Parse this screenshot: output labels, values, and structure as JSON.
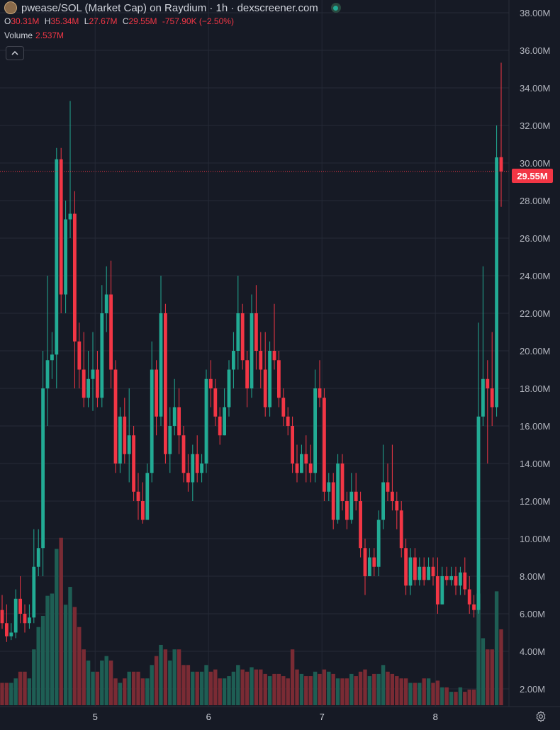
{
  "header": {
    "title": "pwease/SOL (Market Cap) on Raydium · 1h · dexscreener.com",
    "ohlc": {
      "o_label": "O",
      "o": "30.31M",
      "h_label": "H",
      "h": "35.34M",
      "l_label": "L",
      "l": "27.67M",
      "c_label": "C",
      "c": "29.55M",
      "change": "-757.90K (−2.50%)"
    },
    "volume_label": "Volume",
    "volume_value": "2.537M",
    "collapse_icon": "chevron-up-icon"
  },
  "last_price_label": "29.55M",
  "colors": {
    "up": "#22ab94",
    "down": "#f23645",
    "background": "#161a25",
    "grid": "#252a36"
  },
  "chart_data": {
    "type": "candlestick",
    "title": "pwease/SOL (Market Cap) on Raydium · 1h · dexscreener.com",
    "unit": "M",
    "x_tick_labels": [
      "5",
      "6",
      "7",
      "8"
    ],
    "y_tick_labels": [
      "2.00M",
      "4.00M",
      "6.00M",
      "8.00M",
      "10.00M",
      "12.00M",
      "14.00M",
      "16.00M",
      "18.00M",
      "20.00M",
      "22.00M",
      "24.00M",
      "26.00M",
      "28.00M",
      "30.00M",
      "32.00M",
      "34.00M",
      "36.00M",
      "38.00M"
    ],
    "ylim": [
      1.0,
      39.0
    ],
    "last_price": 29.55,
    "candles": [
      [
        0,
        6.2,
        5.5,
        7.0,
        5.2
      ],
      [
        1,
        5.5,
        4.8,
        6.5,
        4.5
      ],
      [
        2,
        4.8,
        5.0,
        5.5,
        4.6
      ],
      [
        3,
        5.0,
        6.8,
        7.3,
        4.7
      ],
      [
        4,
        6.8,
        6.0,
        8.0,
        5.5
      ],
      [
        5,
        6.0,
        5.5,
        6.5,
        5.0
      ],
      [
        6,
        5.5,
        5.8,
        6.5,
        5.2
      ],
      [
        7,
        5.8,
        8.5,
        10.5,
        5.5
      ],
      [
        8,
        8.5,
        9.5,
        10.5,
        8.0
      ],
      [
        9,
        9.5,
        18.0,
        20.0,
        8.0
      ],
      [
        10,
        18.0,
        19.5,
        24.0,
        16.0
      ],
      [
        11,
        19.5,
        19.8,
        21.0,
        18.5
      ],
      [
        12,
        19.8,
        30.2,
        30.8,
        18.0
      ],
      [
        13,
        30.2,
        23.0,
        30.8,
        22.0
      ],
      [
        14,
        23.0,
        27.0,
        28.0,
        22.0
      ],
      [
        15,
        27.0,
        27.3,
        33.3,
        26.0
      ],
      [
        16,
        27.3,
        20.5,
        28.5,
        18.0
      ],
      [
        17,
        20.5,
        19.0,
        21.5,
        18.0
      ],
      [
        18,
        19.0,
        17.5,
        21.0,
        17.0
      ],
      [
        19,
        17.5,
        18.5,
        20.0,
        17.0
      ],
      [
        20,
        18.5,
        19.0,
        21.0,
        16.8
      ],
      [
        21,
        19.0,
        17.5,
        20.0,
        17.0
      ],
      [
        22,
        17.5,
        22.0,
        23.5,
        17.0
      ],
      [
        23,
        22.0,
        23.0,
        24.5,
        21.0
      ],
      [
        24,
        23.0,
        19.0,
        24.8,
        18.0
      ],
      [
        25,
        19.0,
        14.0,
        19.5,
        13.5
      ],
      [
        26,
        14.0,
        16.5,
        17.0,
        13.5
      ],
      [
        27,
        16.5,
        14.5,
        17.5,
        14.0
      ],
      [
        28,
        14.5,
        15.5,
        18.0,
        13.0
      ],
      [
        29,
        15.5,
        12.5,
        16.0,
        12.0
      ],
      [
        30,
        12.5,
        12.0,
        13.5,
        11.0
      ],
      [
        31,
        12.0,
        11.0,
        13.0,
        10.8
      ],
      [
        32,
        11.0,
        13.5,
        14.0,
        11.0
      ],
      [
        33,
        13.5,
        19.0,
        20.5,
        13.0
      ],
      [
        34,
        19.0,
        16.5,
        19.5,
        15.5
      ],
      [
        35,
        16.5,
        22.0,
        24.0,
        16.0
      ],
      [
        36,
        22.0,
        14.5,
        22.5,
        14.0
      ],
      [
        37,
        14.5,
        16.0,
        17.0,
        13.5
      ],
      [
        38,
        16.0,
        17.0,
        18.5,
        15.5
      ],
      [
        39,
        17.0,
        15.5,
        18.0,
        14.5
      ],
      [
        40,
        15.5,
        13.5,
        16.0,
        13.0
      ],
      [
        41,
        13.5,
        13.0,
        14.5,
        12.5
      ],
      [
        42,
        13.0,
        14.5,
        15.0,
        12.0
      ],
      [
        43,
        14.5,
        13.5,
        15.5,
        13.0
      ],
      [
        44,
        13.5,
        14.0,
        14.5,
        13.0
      ],
      [
        45,
        14.0,
        18.5,
        19.0,
        13.5
      ],
      [
        46,
        18.5,
        18.0,
        19.5,
        17.0
      ],
      [
        47,
        18.0,
        16.5,
        18.5,
        16.0
      ],
      [
        48,
        16.5,
        15.5,
        17.0,
        15.0
      ],
      [
        49,
        15.5,
        17.0,
        18.0,
        15.5
      ],
      [
        50,
        17.0,
        19.0,
        19.5,
        16.5
      ],
      [
        51,
        19.0,
        20.0,
        21.0,
        18.0
      ],
      [
        52,
        20.0,
        22.0,
        24.0,
        19.0
      ],
      [
        53,
        22.0,
        19.5,
        22.5,
        19.0
      ],
      [
        54,
        19.5,
        18.0,
        20.0,
        17.0
      ],
      [
        55,
        18.0,
        22.0,
        23.0,
        17.5
      ],
      [
        56,
        22.0,
        20.0,
        23.5,
        19.0
      ],
      [
        57,
        20.0,
        19.0,
        21.0,
        18.0
      ],
      [
        58,
        19.0,
        17.0,
        21.0,
        16.5
      ],
      [
        59,
        17.0,
        20.0,
        20.5,
        16.5
      ],
      [
        60,
        20.0,
        19.5,
        22.5,
        19.0
      ],
      [
        61,
        19.5,
        17.5,
        20.0,
        17.0
      ],
      [
        62,
        17.5,
        16.5,
        18.0,
        16.0
      ],
      [
        63,
        16.5,
        16.0,
        17.0,
        15.5
      ],
      [
        64,
        16.0,
        14.0,
        16.5,
        13.5
      ],
      [
        65,
        14.0,
        13.5,
        15.0,
        13.0
      ],
      [
        66,
        13.5,
        14.5,
        15.0,
        13.5
      ],
      [
        67,
        14.5,
        14.0,
        15.5,
        13.0
      ],
      [
        68,
        14.0,
        13.5,
        15.0,
        13.0
      ],
      [
        69,
        13.5,
        18.0,
        19.0,
        13.0
      ],
      [
        70,
        18.0,
        17.5,
        19.5,
        17.0
      ],
      [
        71,
        17.5,
        12.5,
        18.0,
        12.0
      ],
      [
        72,
        12.5,
        13.0,
        13.5,
        12.0
      ],
      [
        73,
        13.0,
        11.0,
        13.5,
        10.5
      ],
      [
        74,
        11.0,
        14.0,
        14.5,
        10.8
      ],
      [
        75,
        14.0,
        12.0,
        14.5,
        11.5
      ],
      [
        76,
        12.0,
        11.0,
        12.5,
        10.5
      ],
      [
        77,
        11.0,
        12.5,
        13.5,
        10.8
      ],
      [
        78,
        12.5,
        12.0,
        13.5,
        11.5
      ],
      [
        79,
        12.0,
        9.5,
        12.5,
        9.0
      ],
      [
        80,
        9.5,
        8.0,
        10.0,
        7.0
      ],
      [
        81,
        8.0,
        9.0,
        9.5,
        8.5
      ],
      [
        82,
        9.0,
        8.5,
        9.5,
        8.0
      ],
      [
        83,
        8.5,
        11.0,
        11.5,
        8.0
      ],
      [
        84,
        11.0,
        13.0,
        15.0,
        10.5
      ],
      [
        85,
        13.0,
        12.5,
        14.0,
        12.0
      ],
      [
        86,
        12.5,
        12.0,
        15.0,
        11.5
      ],
      [
        87,
        12.0,
        11.5,
        12.5,
        10.5
      ],
      [
        88,
        11.5,
        9.5,
        12.0,
        9.0
      ],
      [
        89,
        9.5,
        7.5,
        10.0,
        7.0
      ],
      [
        90,
        7.5,
        9.0,
        9.5,
        7.0
      ],
      [
        91,
        9.0,
        7.8,
        9.5,
        7.5
      ],
      [
        92,
        7.8,
        8.5,
        9.0,
        7.5
      ],
      [
        93,
        8.5,
        7.8,
        9.0,
        7.5
      ],
      [
        94,
        7.8,
        8.5,
        9.0,
        7.8
      ],
      [
        95,
        8.5,
        8.0,
        9.0,
        7.5
      ],
      [
        96,
        8.0,
        6.5,
        9.0,
        6.0
      ],
      [
        97,
        6.5,
        8.0,
        8.5,
        6.5
      ],
      [
        98,
        8.0,
        7.8,
        8.5,
        7.5
      ],
      [
        99,
        7.8,
        8.0,
        8.5,
        7.5
      ],
      [
        100,
        8.0,
        7.5,
        8.5,
        7.0
      ],
      [
        101,
        7.5,
        8.2,
        8.5,
        7.0
      ],
      [
        102,
        8.2,
        7.3,
        9.0,
        7.0
      ],
      [
        103,
        7.3,
        6.5,
        8.0,
        6.0
      ],
      [
        104,
        6.5,
        6.2,
        7.0,
        5.8
      ],
      [
        105,
        6.2,
        16.5,
        21.5,
        6.0
      ],
      [
        106,
        16.5,
        18.5,
        24.5,
        16.0
      ],
      [
        107,
        18.5,
        18.0,
        19.5,
        14.0
      ],
      [
        108,
        18.0,
        17.0,
        21.0,
        16.0
      ],
      [
        109,
        17.0,
        30.3,
        32.0,
        16.5
      ],
      [
        110,
        30.31,
        29.55,
        35.34,
        27.67
      ]
    ],
    "volume": [
      1.0,
      1.0,
      1.0,
      1.2,
      1.5,
      1.5,
      1.2,
      2.5,
      3.5,
      4.0,
      4.9,
      5.0,
      7.0,
      7.5,
      4.5,
      5.3,
      4.4,
      3.5,
      2.5,
      2.0,
      1.5,
      1.5,
      2.0,
      2.2,
      2.0,
      1.2,
      1.0,
      1.2,
      1.5,
      1.5,
      1.5,
      1.2,
      1.2,
      1.8,
      2.2,
      2.7,
      2.5,
      2.0,
      2.5,
      2.5,
      1.8,
      1.8,
      1.5,
      1.5,
      1.5,
      1.8,
      1.5,
      1.6,
      1.2,
      1.2,
      1.3,
      1.5,
      1.8,
      1.6,
      1.5,
      1.7,
      1.6,
      1.6,
      1.4,
      1.3,
      1.4,
      1.4,
      1.3,
      1.2,
      2.5,
      1.6,
      1.4,
      1.3,
      1.3,
      1.5,
      1.4,
      1.6,
      1.5,
      1.4,
      1.2,
      1.2,
      1.2,
      1.4,
      1.3,
      1.5,
      1.6,
      1.3,
      1.4,
      1.4,
      1.8,
      1.5,
      1.4,
      1.3,
      1.2,
      1.2,
      1.0,
      1.0,
      1.0,
      1.2,
      1.2,
      1.0,
      1.1,
      0.8,
      0.8,
      0.6,
      0.6,
      0.8,
      0.6,
      0.7,
      0.7,
      5.0,
      3.0,
      2.5,
      2.5,
      5.1,
      3.4
    ]
  }
}
